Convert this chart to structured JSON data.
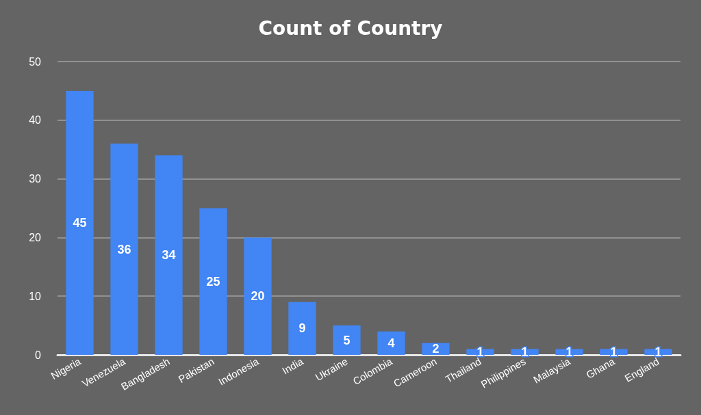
{
  "chart_data": {
    "type": "bar",
    "title": "Count of Country",
    "categories": [
      "Nigeria",
      "Venezuela",
      "Bangladesh",
      "Pakistan",
      "Indonesia",
      "India",
      "Ukraine",
      "Colombia",
      "Cameroon",
      "Thailand",
      "Philippines",
      "Malaysia",
      "Ghana",
      "England"
    ],
    "values": [
      45,
      36,
      34,
      25,
      20,
      9,
      5,
      4,
      2,
      1,
      1,
      1,
      1,
      1
    ],
    "color": "#4285f4",
    "ylim": [
      0,
      50
    ],
    "yticks": [
      0,
      10,
      20,
      30,
      40,
      50
    ],
    "grid": "y",
    "data_labels": true
  }
}
